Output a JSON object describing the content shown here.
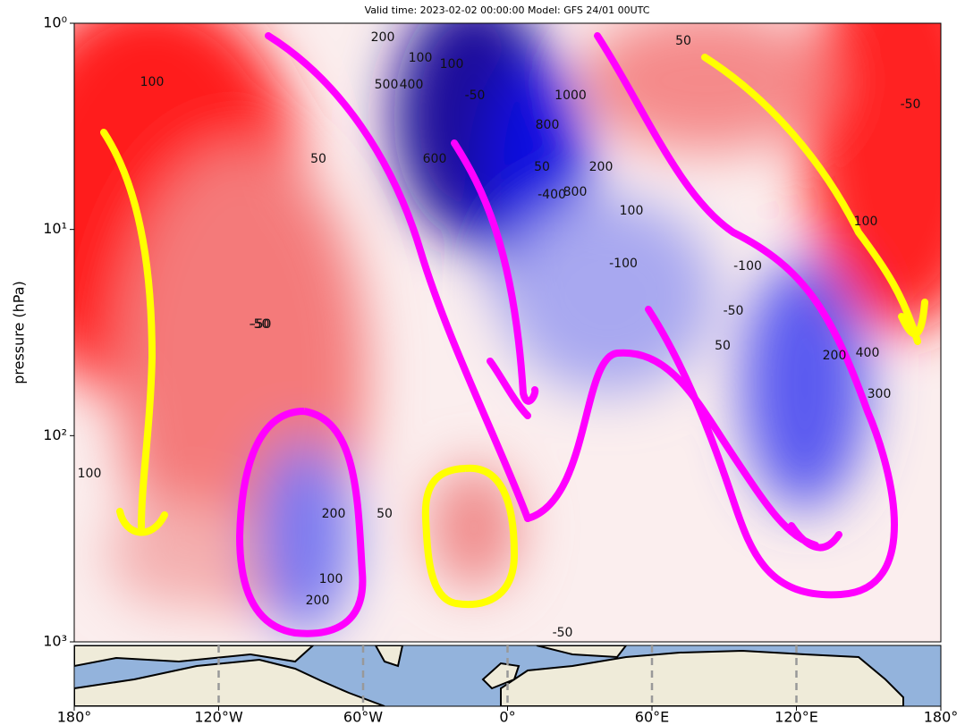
{
  "chart_data": {
    "type": "contour",
    "title": "Valid time: 2023-02-02 00:00:00 Model: GFS 24/01 00UTC",
    "ylabel": "pressure (hPa)",
    "xlim": [
      -180,
      180
    ],
    "xticks": [
      {
        "value": -180,
        "label": "180°"
      },
      {
        "value": -120,
        "label": "120°W"
      },
      {
        "value": -60,
        "label": "60°W"
      },
      {
        "value": 0,
        "label": "0°"
      },
      {
        "value": 60,
        "label": "60°E"
      },
      {
        "value": 120,
        "label": "120°E"
      },
      {
        "value": 180,
        "label": "180°"
      }
    ],
    "ylim": [
      1,
      1000
    ],
    "yscale": "log",
    "yinverted": true,
    "yticks": [
      {
        "value": 1,
        "label": "10⁰"
      },
      {
        "value": 10,
        "label": "10¹"
      },
      {
        "value": 100,
        "label": "10²"
      },
      {
        "value": 1000,
        "label": "10³"
      }
    ],
    "contour_labels": [
      "100",
      "50",
      "-50",
      "200",
      "100",
      "100",
      "500",
      "400",
      "-50",
      "1000",
      "800",
      "600",
      "50",
      "200",
      "-400",
      "800",
      "100",
      "-100",
      "-100",
      "-50",
      "50",
      "200",
      "400",
      "300",
      "100",
      "50",
      "-50",
      "-50",
      "200",
      "100",
      "-50",
      "100",
      "50",
      "200"
    ]
  }
}
